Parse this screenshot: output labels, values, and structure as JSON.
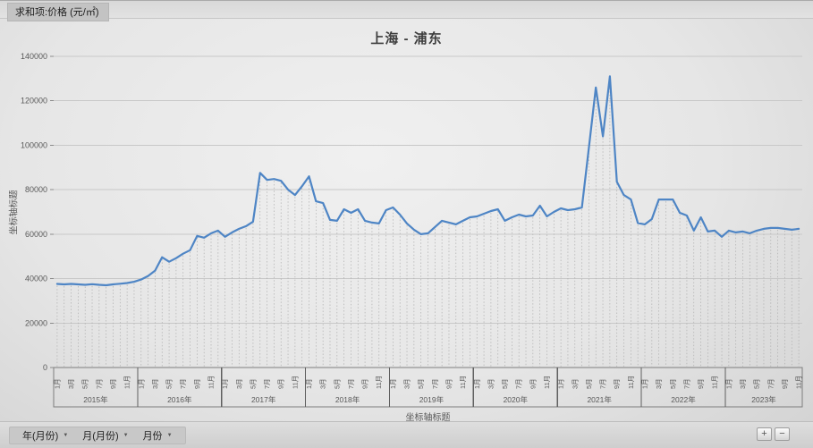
{
  "header": {
    "field_label": "求和项:价格 (元/㎡)"
  },
  "chart_data": {
    "type": "line",
    "title": "上海 - 浦东",
    "xlabel": "坐标轴标题",
    "ylabel": "坐标轴标题",
    "ylim": [
      0,
      140000
    ],
    "ytick_step": 20000,
    "grid": "horizontal",
    "legend": "none",
    "drop_lines": true,
    "line_color": "#4e85c5",
    "gridline_color": "#c8c8c8",
    "axis_text_color": "#595959",
    "month_tick_labels": [
      "1月",
      "3月",
      "5月",
      "7月",
      "9月",
      "11月"
    ],
    "years": [
      {
        "label": "2015年",
        "months": 12
      },
      {
        "label": "2016年",
        "months": 12
      },
      {
        "label": "2017年",
        "months": 12
      },
      {
        "label": "2018年",
        "months": 12
      },
      {
        "label": "2019年",
        "months": 12
      },
      {
        "label": "2020年",
        "months": 12
      },
      {
        "label": "2021年",
        "months": 12
      },
      {
        "label": "2022年",
        "months": 12
      },
      {
        "label": "2023年",
        "months": 11
      }
    ],
    "values": [
      37600,
      37400,
      37600,
      37400,
      37200,
      37500,
      37200,
      37000,
      37400,
      37700,
      38000,
      38600,
      39600,
      41200,
      43600,
      49600,
      47600,
      49200,
      51200,
      52800,
      59200,
      58400,
      60400,
      61600,
      58800,
      60800,
      62400,
      63600,
      65600,
      87600,
      84400,
      84800,
      84000,
      80000,
      77600,
      81600,
      86000,
      74800,
      74000,
      66400,
      66000,
      71200,
      69600,
      71200,
      66000,
      65200,
      64800,
      70800,
      72000,
      68800,
      64800,
      62000,
      60000,
      60400,
      63200,
      66000,
      65200,
      64400,
      66000,
      67600,
      68000,
      69200,
      70400,
      71200,
      66000,
      67600,
      68800,
      68000,
      68400,
      72800,
      68000,
      70000,
      71600,
      70800,
      71200,
      72000,
      98800,
      126000,
      104000,
      131000,
      83600,
      77600,
      75600,
      65000,
      64400,
      66800,
      75600,
      75600,
      75600,
      69600,
      68400,
      61600,
      67600,
      61200,
      61600,
      58800,
      61600,
      60800,
      61200,
      60400,
      61600,
      62400,
      62800,
      62800,
      62400,
      62000,
      62400
    ]
  },
  "pivot": {
    "field_buttons": [
      {
        "label": "年(月份)"
      },
      {
        "label": "月(月份)"
      },
      {
        "label": "月份"
      }
    ],
    "caret": "▼",
    "expand_button": "+",
    "collapse_button": "−"
  }
}
